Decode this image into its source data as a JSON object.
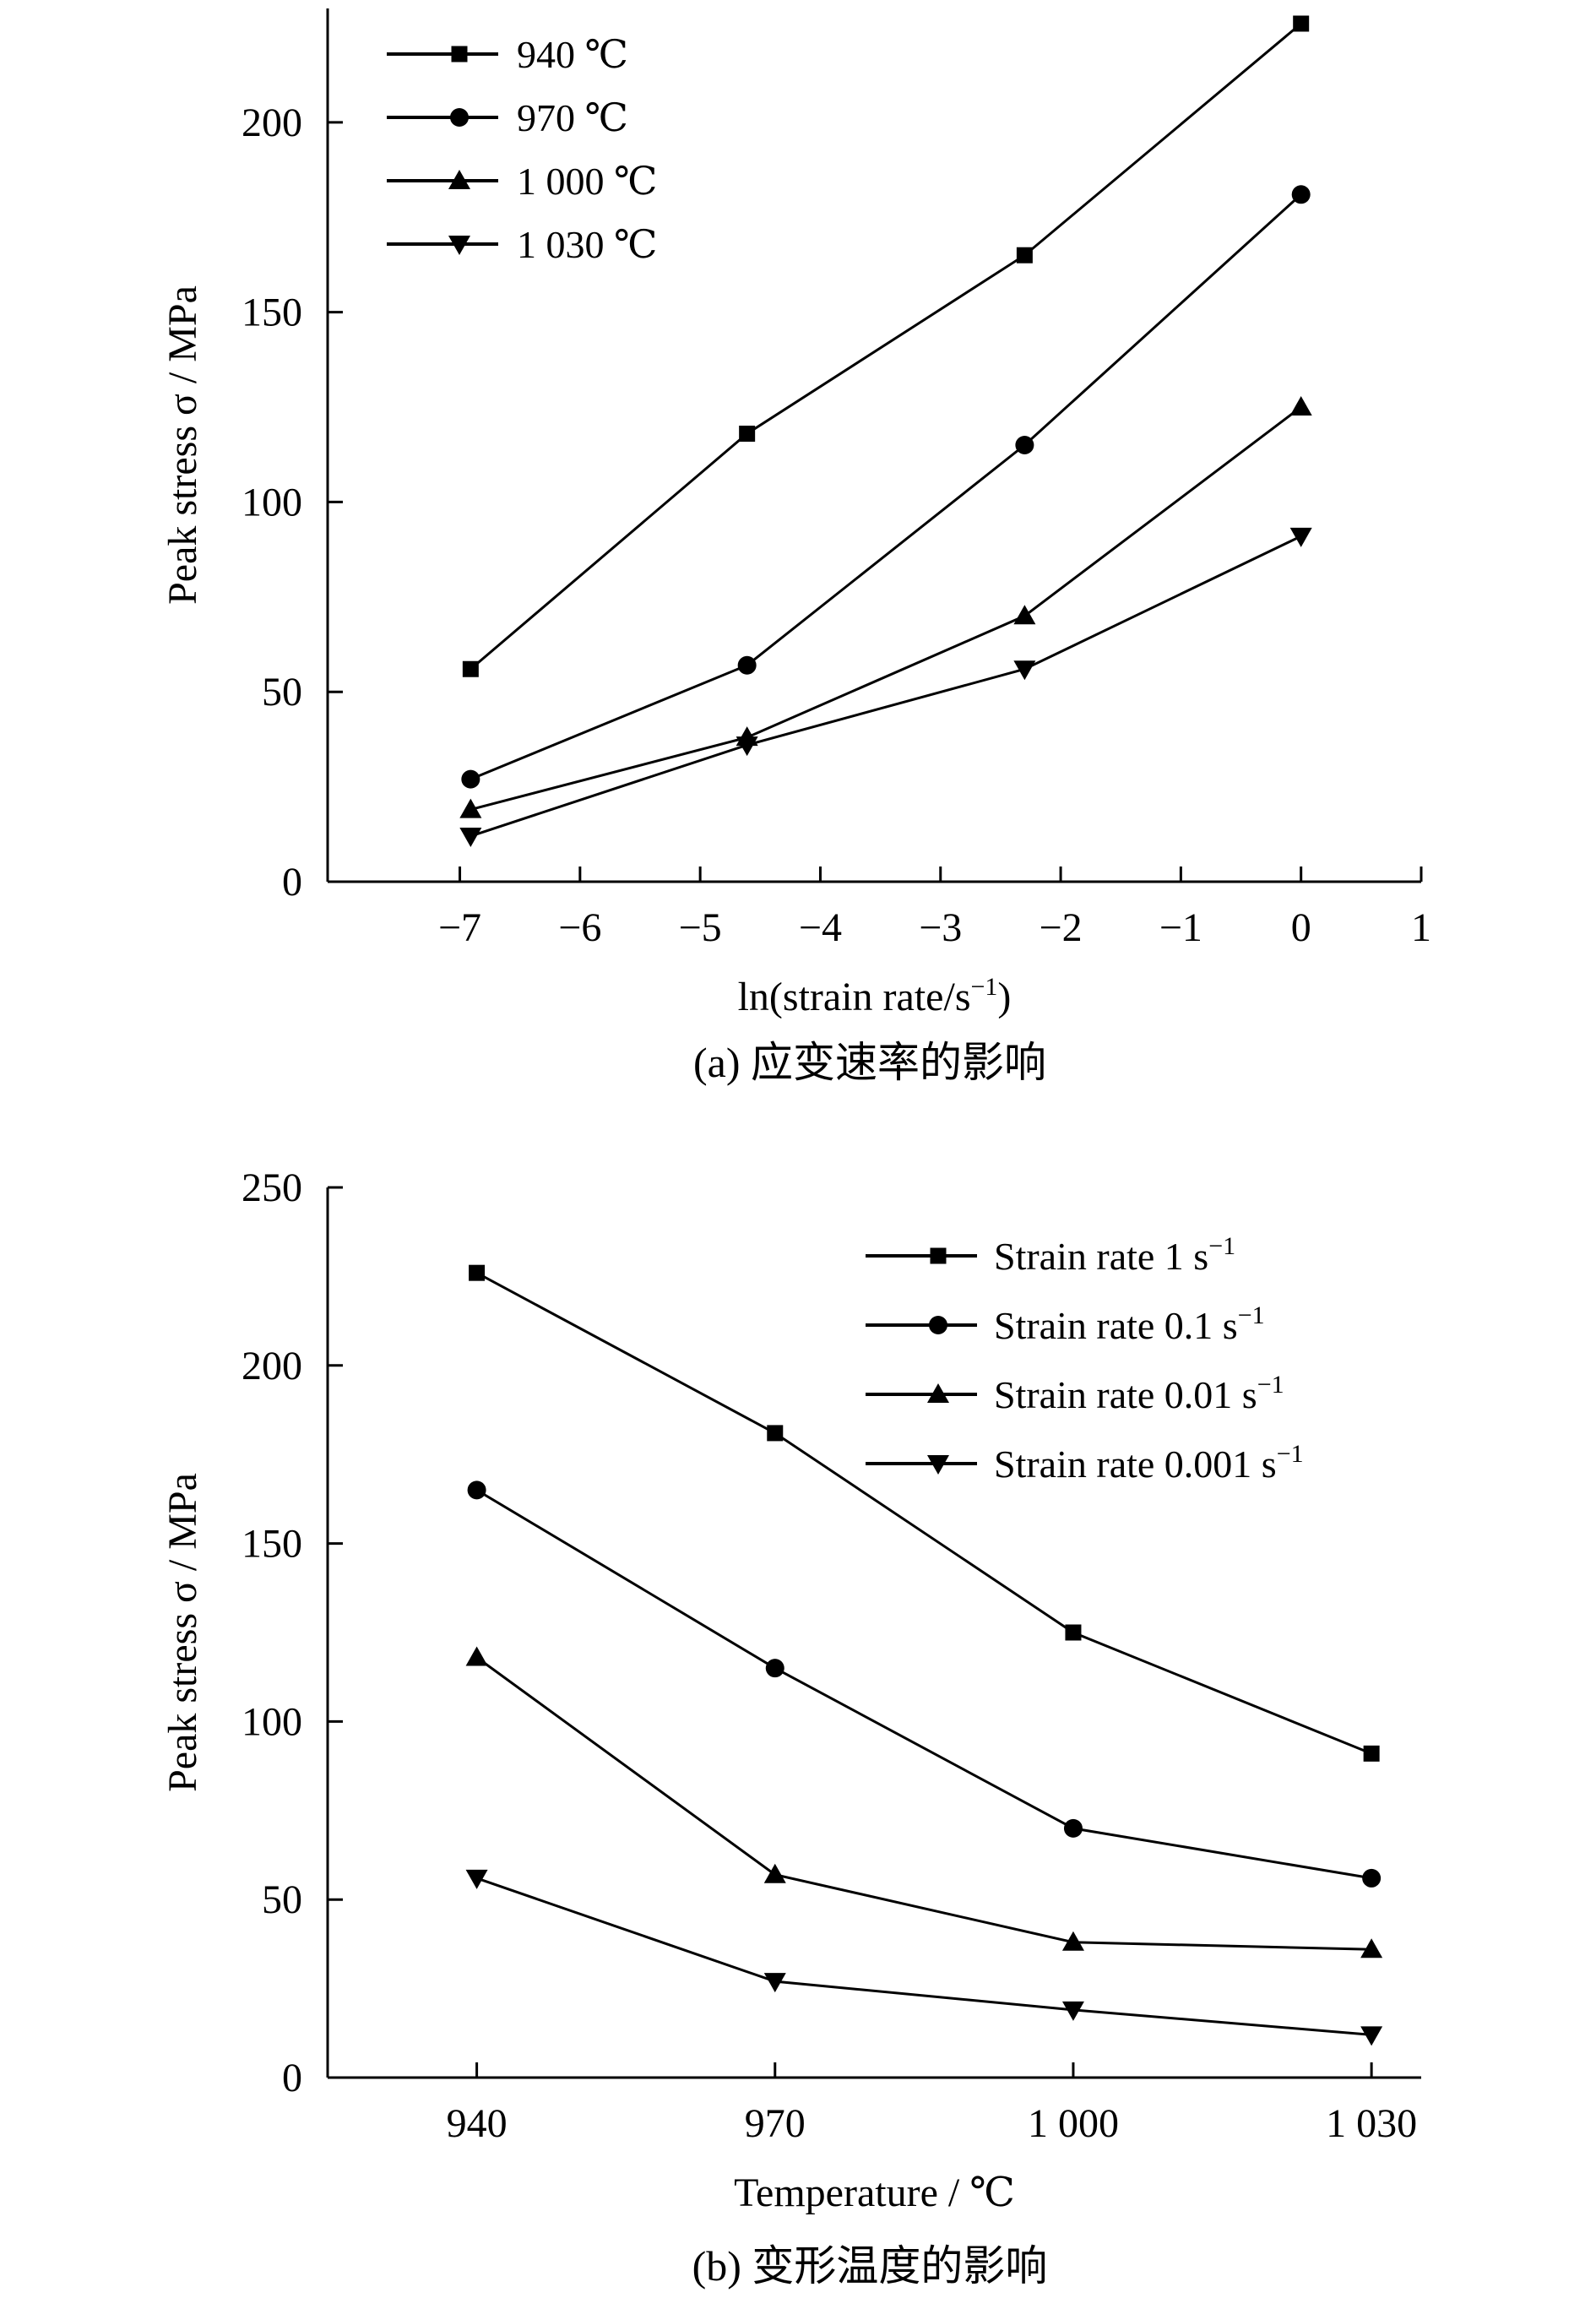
{
  "colors": {
    "line": "#000000",
    "background": "#ffffff"
  },
  "chart_data": [
    {
      "id": "a",
      "type": "line",
      "caption": "(a) 应变速率的影响",
      "xlabel": "ln(strain rate/s",
      "xlabel_sup": "−1",
      "xlabel_close": ")",
      "ylabel": "Peak stress σ / MPa",
      "xlim": [
        -8.1,
        1
      ],
      "ylim": [
        0,
        230
      ],
      "xticks": [
        -7,
        -6,
        -5,
        -4,
        -3,
        -2,
        -1,
        0,
        1
      ],
      "xtick_labels": [
        "−7",
        "−6",
        "−5",
        "−4",
        "−3",
        "−2",
        "−1",
        "0",
        "1"
      ],
      "yticks": [
        0,
        50,
        100,
        150,
        200
      ],
      "ytick_labels": [
        "0",
        "50",
        "100",
        "150",
        "200"
      ],
      "legend_position": "top-left",
      "series": [
        {
          "name": "940 ℃",
          "sup": "",
          "marker": "square",
          "x": [
            -6.91,
            -4.61,
            -2.3,
            0
          ],
          "y": [
            56,
            118,
            165,
            226
          ]
        },
        {
          "name": "970 ℃",
          "sup": "",
          "marker": "circle",
          "x": [
            -6.91,
            -4.61,
            -2.3,
            0
          ],
          "y": [
            27,
            57,
            115,
            181
          ]
        },
        {
          "name": "1 000 ℃",
          "sup": "",
          "marker": "triangle-up",
          "x": [
            -6.91,
            -4.61,
            -2.3,
            0
          ],
          "y": [
            19,
            38,
            70,
            125
          ]
        },
        {
          "name": "1 030 ℃",
          "sup": "",
          "marker": "triangle-down",
          "x": [
            -6.91,
            -4.61,
            -2.3,
            0
          ],
          "y": [
            12,
            36,
            56,
            91
          ]
        }
      ]
    },
    {
      "id": "b",
      "type": "line",
      "caption": "(b) 变形温度的影响",
      "xlabel": "Temperature / ℃",
      "xlabel_sup": "",
      "xlabel_close": "",
      "ylabel": "Peak stress σ / MPa",
      "xlim": [
        925,
        1035
      ],
      "ylim": [
        0,
        250
      ],
      "xticks": [
        940,
        970,
        1000,
        1030
      ],
      "xtick_labels": [
        "940",
        "970",
        "1 000",
        "1 030"
      ],
      "yticks": [
        0,
        50,
        100,
        150,
        200,
        250
      ],
      "ytick_labels": [
        "0",
        "50",
        "100",
        "150",
        "200",
        "250"
      ],
      "legend_position": "top-right",
      "series": [
        {
          "name": "Strain rate 1 s",
          "sup": "−1",
          "marker": "square",
          "x": [
            940,
            970,
            1000,
            1030
          ],
          "y": [
            226,
            181,
            125,
            91
          ]
        },
        {
          "name": "Strain rate 0.1 s",
          "sup": "−1",
          "marker": "circle",
          "x": [
            940,
            970,
            1000,
            1030
          ],
          "y": [
            165,
            115,
            70,
            56
          ]
        },
        {
          "name": "Strain rate 0.01 s",
          "sup": "−1",
          "marker": "triangle-up",
          "x": [
            940,
            970,
            1000,
            1030
          ],
          "y": [
            118,
            57,
            38,
            36
          ]
        },
        {
          "name": "Strain rate 0.001 s",
          "sup": "−1",
          "marker": "triangle-down",
          "x": [
            940,
            970,
            1000,
            1030
          ],
          "y": [
            56,
            27,
            19,
            12
          ]
        }
      ]
    }
  ]
}
